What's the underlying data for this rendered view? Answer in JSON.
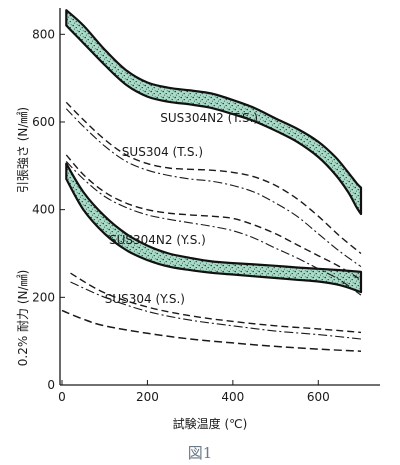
{
  "chart_data": {
    "type": "line",
    "xlabel": "試験温度 (℃)",
    "ylabel_upper": "引張強さ (N/㎟)",
    "ylabel_lower": "0.2% 耐力 (N/㎟)",
    "xlim": [
      0,
      700
    ],
    "ylim": [
      0,
      860
    ],
    "x_ticks": [
      "0",
      "200",
      "400",
      "600"
    ],
    "y_ticks": [
      "0",
      "200",
      "400",
      "600",
      "800"
    ],
    "caption": "図1",
    "band_color": "#a8dcc8",
    "series": [
      {
        "name": "SUS304N2 (T.S.)",
        "kind": "band",
        "x": [
          10,
          50,
          100,
          150,
          200,
          250,
          300,
          350,
          400,
          450,
          500,
          550,
          600,
          640,
          670,
          690,
          700
        ],
        "upper": [
          855,
          820,
          765,
          718,
          690,
          678,
          672,
          665,
          650,
          632,
          608,
          585,
          555,
          520,
          485,
          460,
          450
        ],
        "lower": [
          820,
          780,
          730,
          685,
          658,
          646,
          640,
          632,
          618,
          602,
          580,
          555,
          520,
          480,
          440,
          405,
          390
        ]
      },
      {
        "name": "SUS304 (T.S.)",
        "kind": "lines",
        "x": [
          10,
          50,
          100,
          150,
          200,
          250,
          300,
          350,
          400,
          450,
          500,
          550,
          600,
          650,
          700
        ],
        "upper": [
          645,
          605,
          560,
          525,
          505,
          495,
          492,
          490,
          485,
          475,
          455,
          425,
          385,
          340,
          300
        ],
        "lower": [
          630,
          590,
          545,
          510,
          490,
          478,
          470,
          465,
          455,
          440,
          415,
          385,
          345,
          305,
          270
        ]
      },
      {
        "name": "SUS304N2 (Y.S.)",
        "kind": "band",
        "x": [
          10,
          50,
          100,
          150,
          200,
          250,
          300,
          350,
          400,
          450,
          500,
          550,
          600,
          650,
          700
        ],
        "upper": [
          505,
          440,
          385,
          345,
          318,
          300,
          290,
          282,
          278,
          275,
          272,
          268,
          265,
          262,
          258
        ],
        "lower": [
          470,
          400,
          345,
          308,
          285,
          270,
          262,
          256,
          252,
          248,
          244,
          240,
          236,
          228,
          212
        ]
      },
      {
        "name": "",
        "kind": "lines",
        "x": [
          10,
          50,
          100,
          150,
          200,
          250,
          300,
          350,
          400,
          450,
          500,
          550,
          600,
          650,
          700
        ],
        "upper": [
          525,
          480,
          440,
          415,
          400,
          392,
          388,
          385,
          380,
          365,
          345,
          320,
          295,
          270,
          240
        ],
        "lower": [
          510,
          470,
          430,
          405,
          388,
          378,
          370,
          362,
          352,
          335,
          312,
          290,
          265,
          240,
          205
        ]
      },
      {
        "name": "SUS304 (Y.S.)",
        "kind": "lines",
        "x": [
          20,
          100,
          200,
          300,
          400,
          500,
          600,
          700
        ],
        "upper": [
          255,
          210,
          178,
          158,
          145,
          135,
          128,
          120
        ],
        "lower": [
          235,
          200,
          168,
          148,
          135,
          123,
          115,
          105
        ]
      },
      {
        "name": "",
        "kind": "line",
        "x": [
          0,
          50,
          100,
          200,
          300,
          400,
          500,
          600,
          700
        ],
        "values": [
          170,
          150,
          135,
          118,
          105,
          96,
          88,
          82,
          77
        ]
      }
    ]
  }
}
